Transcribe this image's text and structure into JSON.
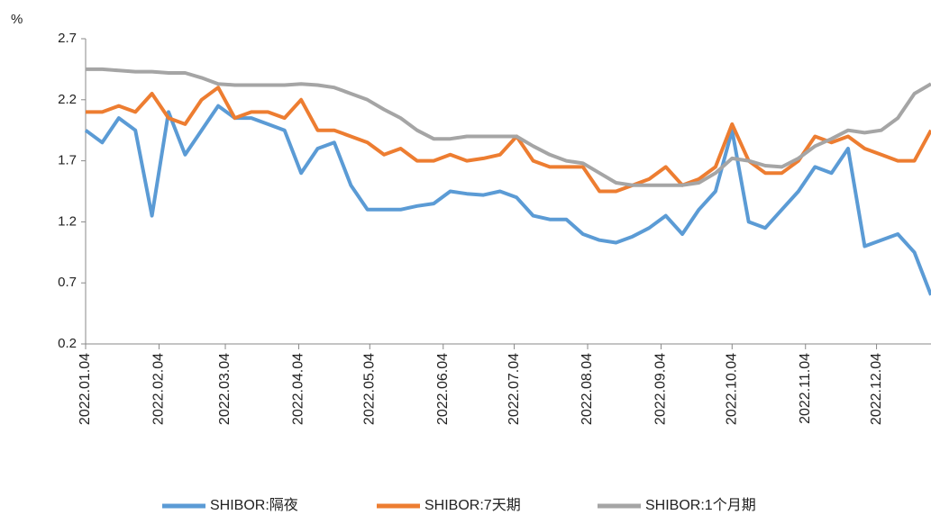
{
  "chart_data": {
    "type": "line",
    "y_label": "%",
    "x": [
      "2022.01.04",
      "2022.01.11",
      "2022.01.18",
      "2022.01.25",
      "2022.02.01",
      "2022.02.08",
      "2022.02.15",
      "2022.02.22",
      "2022.03.01",
      "2022.03.08",
      "2022.03.15",
      "2022.03.22",
      "2022.03.29",
      "2022.04.05",
      "2022.04.12",
      "2022.04.19",
      "2022.04.26",
      "2022.05.03",
      "2022.05.10",
      "2022.05.17",
      "2022.05.24",
      "2022.05.31",
      "2022.06.07",
      "2022.06.14",
      "2022.06.21",
      "2022.06.28",
      "2022.07.05",
      "2022.07.12",
      "2022.07.19",
      "2022.07.26",
      "2022.08.02",
      "2022.08.09",
      "2022.08.16",
      "2022.08.23",
      "2022.08.30",
      "2022.09.06",
      "2022.09.13",
      "2022.09.20",
      "2022.09.27",
      "2022.10.04",
      "2022.10.11",
      "2022.10.18",
      "2022.10.25",
      "2022.11.01",
      "2022.11.08",
      "2022.11.15",
      "2022.11.22",
      "2022.11.29",
      "2022.12.06",
      "2022.12.13",
      "2022.12.20",
      "2022.12.27"
    ],
    "series": [
      {
        "name": "SHIBOR:隔夜",
        "color": "#5b9bd5",
        "values": [
          1.95,
          1.85,
          2.05,
          1.95,
          1.25,
          2.1,
          1.75,
          1.95,
          2.15,
          2.05,
          2.05,
          2.0,
          1.95,
          1.6,
          1.8,
          1.85,
          1.5,
          1.3,
          1.3,
          1.3,
          1.33,
          1.35,
          1.45,
          1.43,
          1.42,
          1.45,
          1.4,
          1.25,
          1.22,
          1.22,
          1.1,
          1.05,
          1.03,
          1.08,
          1.15,
          1.25,
          1.1,
          1.3,
          1.45,
          1.95,
          1.2,
          1.15,
          1.3,
          1.45,
          1.65,
          1.6,
          1.8,
          1.0,
          1.05,
          1.1,
          0.95,
          0.6
        ]
      },
      {
        "name": "SHIBOR:7天期",
        "color": "#ed7d31",
        "values": [
          2.1,
          2.1,
          2.15,
          2.1,
          2.25,
          2.05,
          2.0,
          2.2,
          2.3,
          2.05,
          2.1,
          2.1,
          2.05,
          2.2,
          1.95,
          1.95,
          1.9,
          1.85,
          1.75,
          1.8,
          1.7,
          1.7,
          1.75,
          1.7,
          1.72,
          1.75,
          1.9,
          1.7,
          1.65,
          1.65,
          1.65,
          1.45,
          1.45,
          1.5,
          1.55,
          1.65,
          1.5,
          1.55,
          1.65,
          2.0,
          1.7,
          1.6,
          1.6,
          1.7,
          1.9,
          1.85,
          1.9,
          1.8,
          1.75,
          1.7,
          1.7,
          1.95
        ]
      },
      {
        "name": "SHIBOR:1个月期",
        "color": "#a5a5a5",
        "values": [
          2.45,
          2.45,
          2.44,
          2.43,
          2.43,
          2.42,
          2.42,
          2.38,
          2.33,
          2.32,
          2.32,
          2.32,
          2.32,
          2.33,
          2.32,
          2.3,
          2.25,
          2.2,
          2.12,
          2.05,
          1.95,
          1.88,
          1.88,
          1.9,
          1.9,
          1.9,
          1.9,
          1.82,
          1.75,
          1.7,
          1.68,
          1.6,
          1.52,
          1.5,
          1.5,
          1.5,
          1.5,
          1.52,
          1.6,
          1.72,
          1.7,
          1.66,
          1.65,
          1.72,
          1.82,
          1.88,
          1.95,
          1.93,
          1.95,
          2.05,
          2.25,
          2.33
        ]
      }
    ],
    "xlim": [
      "2022.01.04",
      "2022.12.27"
    ],
    "xticks": [
      "2022.01.04",
      "2022.02.04",
      "2022.03.04",
      "2022.04.04",
      "2022.05.04",
      "2022.06.04",
      "2022.07.04",
      "2022.08.04",
      "2022.09.04",
      "2022.10.04",
      "2022.11.04",
      "2022.12.04"
    ],
    "ylim": [
      0.2,
      2.7
    ],
    "yticks": [
      0.2,
      0.7,
      1.2,
      1.7,
      2.2,
      2.7
    ],
    "grid": false,
    "legend": "bottom"
  }
}
